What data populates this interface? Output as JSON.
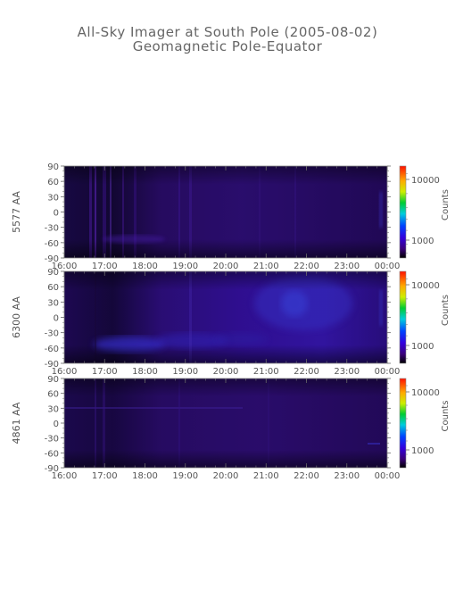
{
  "title": "All-Sky Imager at South Pole (2005-08-02)",
  "subtitle": "Geomagnetic Pole-Equator",
  "chart_data": [
    {
      "type": "heatmap",
      "ylabel": "5577 AA",
      "x_ticks": [
        "16:00",
        "17:00",
        "18:00",
        "19:00",
        "20:00",
        "21:00",
        "22:00",
        "23:00",
        "00:00"
      ],
      "y_ticks": [
        90,
        60,
        30,
        0,
        -30,
        -60,
        -90
      ],
      "ylim": [
        -90,
        90
      ],
      "colorbar": {
        "label": "Counts",
        "ticks": [
          "10000",
          "1000"
        ]
      },
      "features": [
        {
          "x": "16:45",
          "note": "bright vertical streak"
        },
        {
          "x": "17:15",
          "y": -60,
          "note": "faint band"
        }
      ]
    },
    {
      "type": "heatmap",
      "ylabel": "6300 AA",
      "x_ticks": [
        "16:00",
        "17:00",
        "18:00",
        "19:00",
        "20:00",
        "21:00",
        "22:00",
        "23:00",
        "00:00"
      ],
      "y_ticks": [
        90,
        60,
        30,
        0,
        -30,
        -60,
        -90
      ],
      "ylim": [
        -90,
        90
      ],
      "colorbar": {
        "label": "Counts",
        "ticks": [
          "10000",
          "1000"
        ]
      },
      "features": [
        {
          "x": "17:30",
          "y": -65,
          "note": "bright low-latitude band"
        },
        {
          "x": "21:30",
          "y": 30,
          "note": "enhanced emission region"
        }
      ]
    },
    {
      "type": "heatmap",
      "ylabel": "4861 AA",
      "x_ticks": [
        "16:00",
        "17:00",
        "18:00",
        "19:00",
        "20:00",
        "21:00",
        "22:00",
        "23:00",
        "00:00"
      ],
      "y_ticks": [
        90,
        60,
        30,
        0,
        -30,
        -60,
        -90
      ],
      "ylim": [
        -90,
        90
      ],
      "colorbar": {
        "label": "Counts",
        "ticks": [
          "10000",
          "1000"
        ]
      },
      "features": [
        {
          "x": "17:00",
          "y": 30,
          "note": "faint horizontal line"
        }
      ]
    }
  ]
}
